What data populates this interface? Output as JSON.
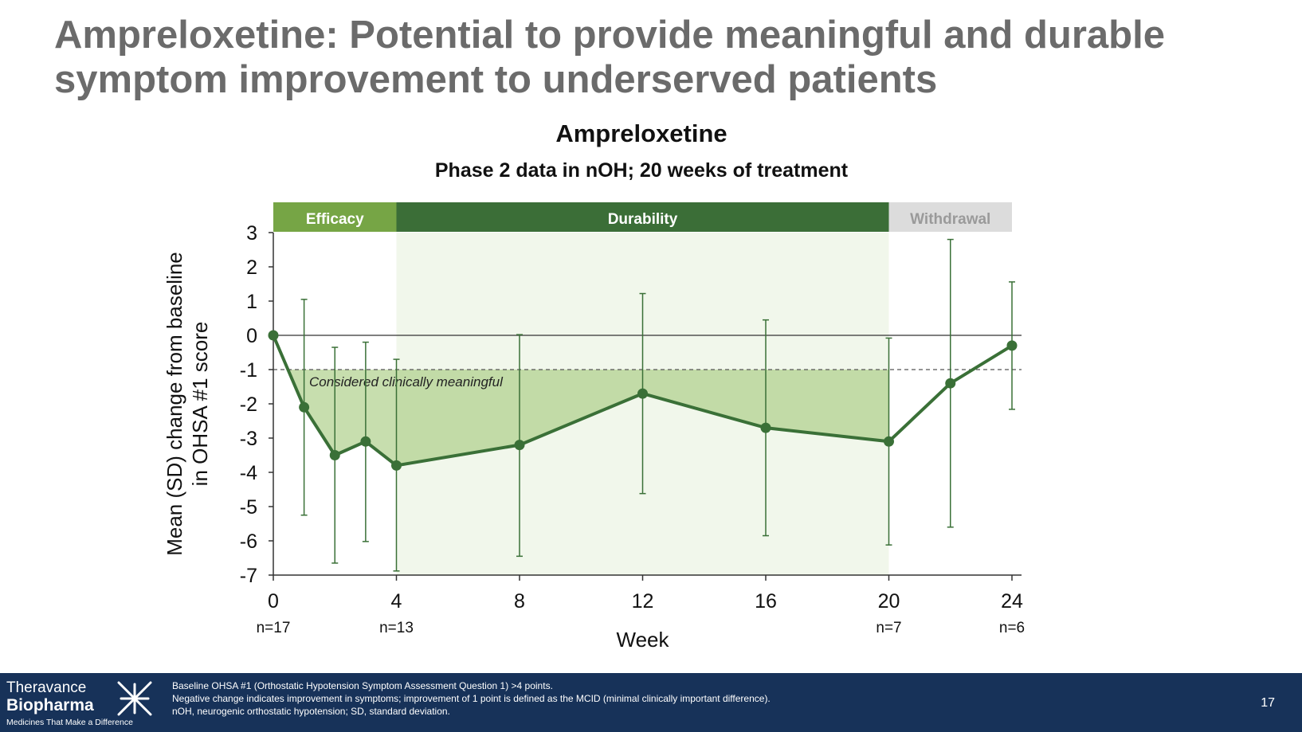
{
  "slide": {
    "title_lines": [
      "Ampreloxetine: Potential to provide meaningful and durable",
      "symptom improvement to underserved patients"
    ],
    "page_number": "17"
  },
  "footer": {
    "company_line1": "Theravance",
    "company_line2": "Biopharma",
    "tagline": "Medicines That Make a Difference",
    "notes": [
      "Baseline OHSA #1 (Orthostatic Hypotension Symptom Assessment Question 1) >4 points.",
      "Negative change indicates improvement in symptoms; improvement of 1 point is defined as the MCID (minimal clinically important difference).",
      "nOH, neurogenic orthostatic hypotension; SD, standard deviation."
    ]
  },
  "colors": {
    "line": "#3a7037",
    "efficacy_band": "#76a545",
    "durability_band": "#3b6e37",
    "withdrawal_band": "#dcdcdc",
    "durability_bg": "#f1f7eb",
    "meaningful_fill": "#a9cc82",
    "footer_bg": "#173259"
  },
  "chart_data": {
    "type": "line",
    "title": "Ampreloxetine",
    "subtitle": "Phase 2 data in nOH; 20 weeks of treatment",
    "xlabel": "Week",
    "ylabel_lines": [
      "Mean (SD) change from baseline",
      "in OHSA #1 score"
    ],
    "xlim": [
      0,
      24
    ],
    "ylim": [
      -7,
      3
    ],
    "x_ticks": [
      0,
      4,
      8,
      12,
      16,
      20,
      24
    ],
    "y_ticks": [
      3,
      2,
      1,
      0,
      -1,
      -2,
      -3,
      -4,
      -5,
      -6,
      -7
    ],
    "x": [
      0,
      1,
      2,
      3,
      4,
      8,
      12,
      16,
      20,
      22,
      24
    ],
    "y": [
      0,
      -2.1,
      -3.5,
      -3.1,
      -3.8,
      -3.2,
      -1.7,
      -2.7,
      -3.1,
      -1.4,
      -0.3
    ],
    "error_upper": [
      null,
      1.05,
      -0.35,
      -0.2,
      -0.7,
      0.02,
      1.22,
      0.45,
      -0.08,
      2.8,
      1.56
    ],
    "error_lower": [
      null,
      -5.25,
      -6.65,
      -6.02,
      -6.88,
      -6.45,
      -4.62,
      -5.85,
      -6.12,
      -5.6,
      -2.16
    ],
    "phases": [
      {
        "label": "Efficacy",
        "start": 0,
        "end": 4
      },
      {
        "label": "Durability",
        "start": 4,
        "end": 20
      },
      {
        "label": "Withdrawal",
        "start": 20,
        "end": 24
      }
    ],
    "threshold": {
      "y": -1,
      "label": "Considered clinically meaningful"
    },
    "sample_sizes": [
      {
        "x": 0,
        "label": "n=17"
      },
      {
        "x": 4,
        "label": "n=13"
      },
      {
        "x": 20,
        "label": "n=7"
      },
      {
        "x": 24,
        "label": "n=6"
      }
    ]
  }
}
